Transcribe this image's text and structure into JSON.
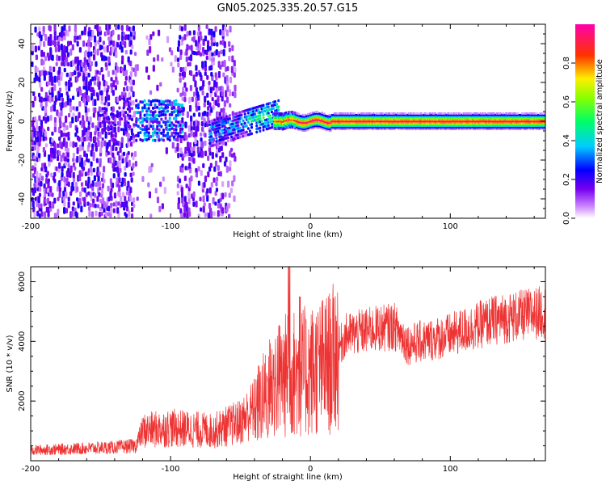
{
  "title": "GN05.2025.335.20.57.G15",
  "colors": {
    "snr_line": "#ee3333",
    "frame": "#000000"
  },
  "chart_data": [
    {
      "type": "heatmap",
      "name": "spectrogram",
      "xlabel": "Height of straight line (km)",
      "ylabel": "Frequency (Hz)",
      "xlim": [
        -200,
        168
      ],
      "ylim": [
        -50,
        50
      ],
      "xticks": [
        "-200",
        "-100",
        "0",
        "100"
      ],
      "xtick_values": [
        -200,
        -100,
        0,
        100
      ],
      "yticks": [
        "40",
        "20",
        "0",
        "-20",
        "-40"
      ],
      "ytick_values": [
        40,
        20,
        0,
        -20,
        -40
      ],
      "colorbar": {
        "label": "Normalized spectral amplitude",
        "range": [
          0,
          1
        ],
        "ticks": [
          "0.0",
          "0.2",
          "0.4",
          "0.6",
          "0.8"
        ],
        "tick_values": [
          0,
          0.2,
          0.4,
          0.6,
          0.8
        ],
        "colormap": "rainbow (white-violet-blue-cyan-green-yellow-red-magenta)"
      },
      "features": [
        {
          "x_range": [
            -200,
            -125
          ],
          "freq_range": [
            -50,
            50
          ],
          "amplitude": 0.15
        },
        {
          "x_range": [
            -125,
            -95
          ],
          "freq_range": [
            -10,
            10
          ],
          "amplitude": 0.35
        },
        {
          "x_range": [
            -95,
            -60
          ],
          "freq_range": [
            -50,
            50
          ],
          "amplitude": 0.12
        },
        {
          "x_range": [
            -70,
            -22
          ],
          "freq_range": [
            -8,
            10
          ],
          "amplitude": 0.5
        },
        {
          "x_range": [
            -22,
            168
          ],
          "freq_center": 0,
          "amplitude": 0.95
        }
      ]
    },
    {
      "type": "line",
      "name": "snr",
      "xlabel": "Height of straight line (km)",
      "ylabel": "SNR (10 * v/v)",
      "xlim": [
        -200,
        168
      ],
      "ylim": [
        0,
        6500
      ],
      "xticks": [
        "-200",
        "-100",
        "0",
        "100"
      ],
      "xtick_values": [
        -200,
        -100,
        0,
        100
      ],
      "yticks": [
        "6000",
        "4000",
        "2000"
      ],
      "ytick_values": [
        6000,
        4000,
        2000
      ],
      "trend_points": [
        {
          "x": -200,
          "y": 350
        },
        {
          "x": -140,
          "y": 450
        },
        {
          "x": -125,
          "y": 500
        },
        {
          "x": -120,
          "y": 1000
        },
        {
          "x": -100,
          "y": 1100
        },
        {
          "x": -70,
          "y": 1000
        },
        {
          "x": -50,
          "y": 1300
        },
        {
          "x": -35,
          "y": 2000
        },
        {
          "x": -25,
          "y": 2700
        },
        {
          "x": -15,
          "y": 2900
        },
        {
          "x": 0,
          "y": 3000
        },
        {
          "x": 15,
          "y": 3300
        },
        {
          "x": 25,
          "y": 4200
        },
        {
          "x": 45,
          "y": 4400
        },
        {
          "x": 60,
          "y": 4500
        },
        {
          "x": 70,
          "y": 3900
        },
        {
          "x": 100,
          "y": 4200
        },
        {
          "x": 130,
          "y": 4700
        },
        {
          "x": 168,
          "y": 5000
        }
      ],
      "peak": {
        "x": -15,
        "y": 6500
      }
    }
  ]
}
